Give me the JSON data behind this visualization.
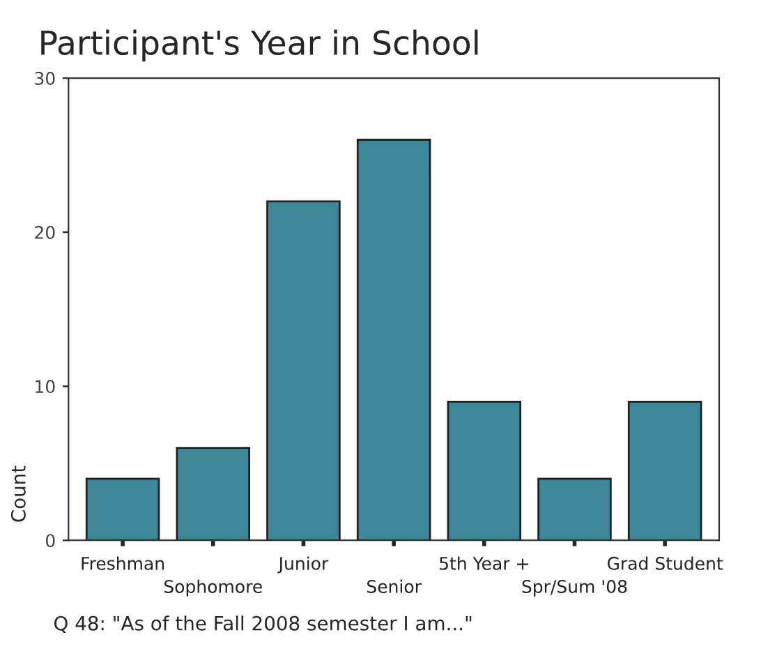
{
  "chart_data": {
    "type": "bar",
    "title": "Participant's Year in School",
    "ylabel": "Count",
    "categories": [
      "Freshman",
      "Sophomore",
      "Junior",
      "Senior",
      "5th Year +",
      "Spr/Sum '08",
      "Grad Student"
    ],
    "values": [
      4,
      6,
      22,
      26,
      9,
      4,
      9
    ],
    "color": "#3d8798",
    "ylim": [
      0,
      30
    ],
    "yticks": [
      0,
      10,
      20,
      30
    ],
    "grid": false,
    "annotations": [
      "Q 48: \"As of the Fall 2008 semester I am...\""
    ]
  }
}
